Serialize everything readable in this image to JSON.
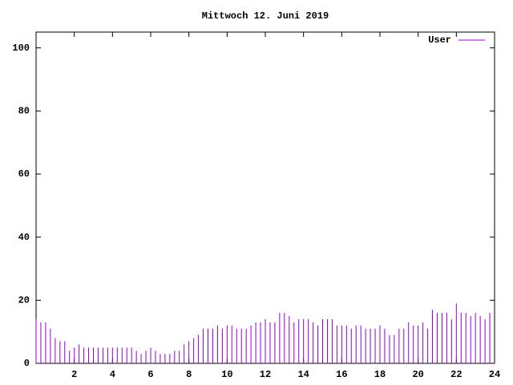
{
  "chart_data": {
    "type": "impulses",
    "title": "Mittwoch 12. Juni 2019",
    "x": [
      0,
      0.25,
      0.5,
      0.75,
      1,
      1.25,
      1.5,
      1.75,
      2,
      2.25,
      2.5,
      2.75,
      3,
      3.25,
      3.5,
      3.75,
      4,
      4.25,
      4.5,
      4.75,
      5,
      5.25,
      5.5,
      5.75,
      6,
      6.25,
      6.5,
      6.75,
      7,
      7.25,
      7.5,
      7.75,
      8,
      8.25,
      8.5,
      8.75,
      9,
      9.25,
      9.5,
      9.75,
      10,
      10.25,
      10.5,
      10.75,
      11,
      11.25,
      11.5,
      11.75,
      12,
      12.25,
      12.5,
      12.75,
      13,
      13.25,
      13.5,
      13.75,
      14,
      14.25,
      14.5,
      14.75,
      15,
      15.25,
      15.5,
      15.75,
      16,
      16.25,
      16.5,
      16.75,
      17,
      17.25,
      17.5,
      17.75,
      18,
      18.25,
      18.5,
      18.75,
      19,
      19.25,
      19.5,
      19.75,
      20,
      20.25,
      20.5,
      20.75,
      21,
      21.25,
      21.5,
      21.75,
      22,
      22.25,
      22.5,
      22.75,
      23,
      23.25,
      23.5,
      23.75
    ],
    "series": [
      {
        "name": "User",
        "color": "#9400d3",
        "values": [
          14,
          13,
          13,
          11,
          8,
          7,
          7,
          4,
          5,
          6,
          5,
          5,
          5,
          5,
          5,
          5,
          5,
          5,
          5,
          5,
          5,
          4,
          3,
          4,
          5,
          4,
          3,
          3,
          3,
          4,
          4,
          6,
          7,
          8,
          9,
          11,
          11,
          11,
          12,
          11,
          12,
          12,
          11,
          11,
          11,
          12,
          13,
          13,
          14,
          13,
          13,
          16,
          16,
          15,
          13,
          14,
          14,
          14,
          13,
          12,
          14,
          14,
          14,
          12,
          12,
          12,
          11,
          12,
          12,
          11,
          11,
          11,
          12,
          11,
          9,
          9,
          11,
          11,
          13,
          12,
          12,
          13,
          11,
          17,
          16,
          16,
          16,
          14,
          19,
          16,
          16,
          15,
          16,
          15,
          14,
          16
        ]
      }
    ],
    "xlim": [
      0,
      24
    ],
    "xticks": [
      2,
      4,
      6,
      8,
      10,
      12,
      14,
      16,
      18,
      20,
      22,
      24
    ],
    "ylim": [
      0,
      105
    ],
    "yticks": [
      0,
      20,
      40,
      60,
      80,
      100
    ],
    "legend": "top-right"
  }
}
